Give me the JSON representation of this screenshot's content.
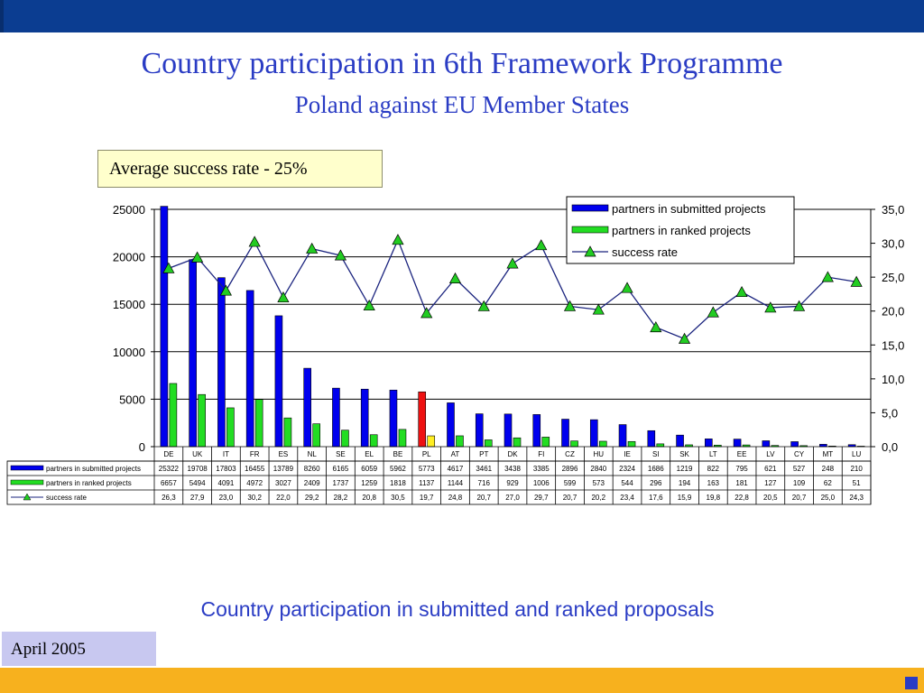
{
  "slide": {
    "title": "Country participation in 6th Framework Programme",
    "subtitle": "Poland against EU Member States",
    "average_note": "Average success rate - 25%",
    "caption": "Country participation in submitted and ranked proposals",
    "date": "April 2005"
  },
  "colors": {
    "top_bar": "#0b3d91",
    "title_text": "#2a3cc4",
    "submitted": "#0000ee",
    "ranked": "#22dd22",
    "poland_submitted": "#ee1111",
    "poland_ranked": "#ffee22",
    "success_line": "#1a237e",
    "success_marker": "#22cc22",
    "bottom_bar": "#f7b11e"
  },
  "chart_data": {
    "type": "bar",
    "categories": [
      "DE",
      "UK",
      "IT",
      "FR",
      "ES",
      "NL",
      "SE",
      "EL",
      "BE",
      "PL",
      "AT",
      "PT",
      "DK",
      "FI",
      "CZ",
      "HU",
      "IE",
      "SI",
      "SK",
      "LT",
      "EE",
      "LV",
      "CY",
      "MT",
      "LU"
    ],
    "series": [
      {
        "name": "partners in submitted projects",
        "axis": "left",
        "values": [
          25322,
          19708,
          17803,
          16455,
          13789,
          8260,
          6165,
          6059,
          5962,
          5773,
          4617,
          3461,
          3438,
          3385,
          2896,
          2840,
          2324,
          1686,
          1219,
          822,
          795,
          621,
          527,
          248,
          210
        ],
        "display": [
          "25322",
          "19708",
          "17803",
          "16455",
          "13789",
          "8260",
          "6165",
          "6059",
          "5962",
          "5773",
          "4617",
          "3461",
          "3438",
          "3385",
          "2896",
          "2840",
          "2324",
          "1686",
          "1219",
          "822",
          "795",
          "621",
          "527",
          "248",
          "210"
        ]
      },
      {
        "name": "partners in ranked projects",
        "axis": "left",
        "values": [
          6657,
          5494,
          4091,
          4972,
          3027,
          2409,
          1737,
          1259,
          1818,
          1137,
          1144,
          716,
          929,
          1006,
          599,
          573,
          544,
          296,
          194,
          163,
          181,
          127,
          109,
          62,
          51
        ],
        "display": [
          "6657",
          "5494",
          "4091",
          "4972",
          "3027",
          "2409",
          "1737",
          "1259",
          "1818",
          "1137",
          "1144",
          "716",
          "929",
          "1006",
          "599",
          "573",
          "544",
          "296",
          "194",
          "163",
          "181",
          "127",
          "109",
          "62",
          "51"
        ]
      },
      {
        "name": "success rate",
        "type": "line",
        "axis": "right",
        "values": [
          26.3,
          27.9,
          23.0,
          30.2,
          22.0,
          29.2,
          28.2,
          20.8,
          30.5,
          19.7,
          24.8,
          20.7,
          27.0,
          29.7,
          20.7,
          20.2,
          23.4,
          17.6,
          15.9,
          19.8,
          22.8,
          20.5,
          20.7,
          25.0,
          24.3
        ],
        "display": [
          "26,3",
          "27,9",
          "23,0",
          "30,2",
          "22,0",
          "29,2",
          "28,2",
          "20,8",
          "30,5",
          "19,7",
          "24,8",
          "20,7",
          "27,0",
          "29,7",
          "20,7",
          "20,2",
          "23,4",
          "17,6",
          "15,9",
          "19,8",
          "22,8",
          "20,5",
          "20,7",
          "25,0",
          "24,3"
        ]
      }
    ],
    "highlight_category": "PL",
    "y_left": {
      "min": 0,
      "max": 25000,
      "ticks": [
        "0",
        "5000",
        "10000",
        "15000",
        "20000",
        "25000"
      ]
    },
    "y_right": {
      "min": 0,
      "max": 35,
      "ticks": [
        "0,0",
        "5,0",
        "10,0",
        "15,0",
        "20,0",
        "25,0",
        "30,0",
        "35,0"
      ]
    },
    "grid": "horizontal",
    "legend_position": "top-right",
    "data_table": true
  }
}
